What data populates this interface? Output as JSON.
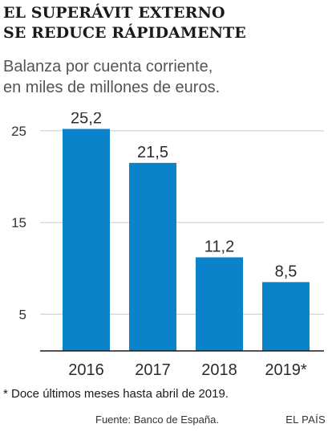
{
  "header": {
    "title_lines": [
      "EL SUPERÁVIT EXTERNO",
      "SE REDUCE RÁPIDAMENTE"
    ],
    "subtitle_lines": [
      "Balanza por cuenta corriente,",
      "en miles de millones de euros."
    ]
  },
  "chart_data": {
    "type": "bar",
    "title": "EL SUPERÁVIT EXTERNO SE REDUCE RÁPIDAMENTE",
    "subtitle": "Balanza por cuenta corriente, en miles de millones de euros.",
    "categories": [
      "2016",
      "2017",
      "2018",
      "2019*"
    ],
    "values": [
      25.2,
      21.5,
      11.2,
      8.5
    ],
    "value_labels": [
      "25,2",
      "21,5",
      "11,2",
      "8,5"
    ],
    "yticks": [
      5,
      15,
      25
    ],
    "ytick_labels": [
      "5",
      "15",
      "25"
    ],
    "ylim": [
      1,
      27
    ],
    "xlabel": "",
    "ylabel": "",
    "grid": true,
    "legend": "none",
    "colors": {
      "bar": "#0a83cb",
      "grid": "#c8c8c8",
      "axis": "#1a1a1a",
      "tick_text": "#333333",
      "label_text": "#2b2b2b"
    }
  },
  "footer": {
    "note": "* Doce últimos meses hasta abril de 2019.",
    "source": "Fuente: Banco de España.",
    "brand": "EL PAÍS"
  }
}
